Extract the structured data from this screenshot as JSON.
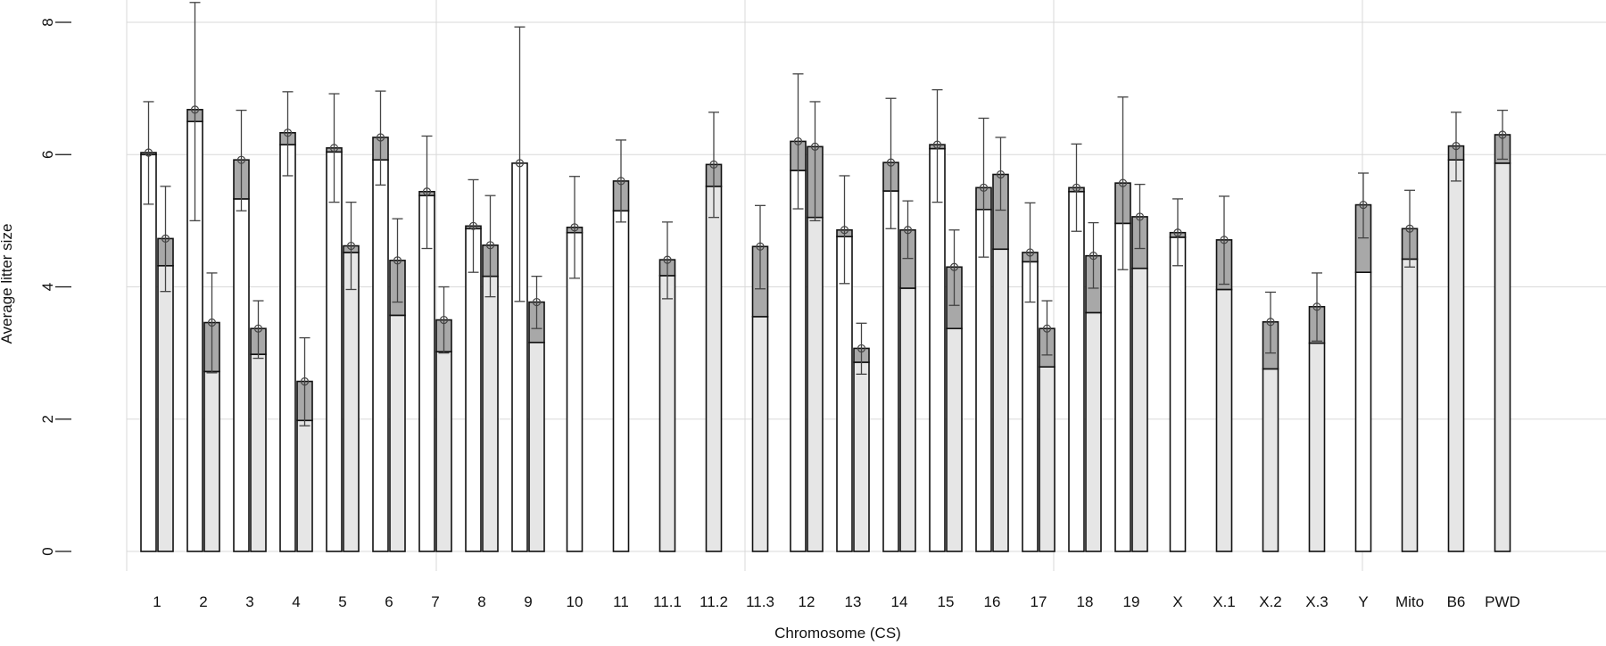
{
  "chart_data": {
    "type": "bar",
    "title": "",
    "xlabel": "Chromosome (CS)",
    "ylabel": "Average litter size",
    "ylim": [
      0,
      8
    ],
    "yticks": [
      0,
      2,
      4,
      6,
      8
    ],
    "grid": true,
    "legend": "none",
    "colors": {
      "white_bar": "#ffffff",
      "light_bar": "#e6e6e6",
      "dark_segment": "#a8a8a8"
    },
    "categories": [
      {
        "label": "1",
        "bars": [
          {
            "color": "white",
            "lower": 6.0,
            "upper": 6.03,
            "err": [
              5.25,
              6.8
            ]
          },
          {
            "color": "light",
            "lower": 4.32,
            "upper": 4.73,
            "err": [
              3.93,
              5.52
            ]
          }
        ]
      },
      {
        "label": "2",
        "bars": [
          {
            "color": "white",
            "lower": 6.5,
            "upper": 6.68,
            "err": [
              5.0,
              8.3
            ]
          },
          {
            "color": "light",
            "lower": 2.72,
            "upper": 3.46,
            "err": [
              2.7,
              4.21
            ]
          }
        ]
      },
      {
        "label": "3",
        "bars": [
          {
            "color": "white",
            "lower": 5.33,
            "upper": 5.92,
            "err": [
              5.15,
              6.67
            ]
          },
          {
            "color": "light",
            "lower": 2.98,
            "upper": 3.37,
            "err": [
              2.92,
              3.79
            ]
          }
        ]
      },
      {
        "label": "4",
        "bars": [
          {
            "color": "white",
            "lower": 6.15,
            "upper": 6.33,
            "err": [
              5.68,
              6.95
            ]
          },
          {
            "color": "light",
            "lower": 1.98,
            "upper": 2.57,
            "err": [
              1.9,
              3.23
            ]
          }
        ]
      },
      {
        "label": "5",
        "bars": [
          {
            "color": "white",
            "lower": 6.04,
            "upper": 6.1,
            "err": [
              5.28,
              6.92
            ]
          },
          {
            "color": "light",
            "lower": 4.52,
            "upper": 4.62,
            "err": [
              3.96,
              5.28
            ]
          }
        ]
      },
      {
        "label": "6",
        "bars": [
          {
            "color": "white",
            "lower": 5.92,
            "upper": 6.26,
            "err": [
              5.54,
              6.96
            ]
          },
          {
            "color": "light",
            "lower": 3.57,
            "upper": 4.4,
            "err": [
              3.77,
              5.03
            ]
          }
        ]
      },
      {
        "label": "7",
        "bars": [
          {
            "color": "white",
            "lower": 5.38,
            "upper": 5.44,
            "err": [
              4.58,
              6.28
            ]
          },
          {
            "color": "light",
            "lower": 3.02,
            "upper": 3.5,
            "err": [
              3.0,
              4.0
            ]
          }
        ]
      },
      {
        "label": "8",
        "bars": [
          {
            "color": "white",
            "lower": 4.88,
            "upper": 4.92,
            "err": [
              4.22,
              5.62
            ]
          },
          {
            "color": "light",
            "lower": 4.16,
            "upper": 4.63,
            "err": [
              3.85,
              5.38
            ]
          }
        ]
      },
      {
        "label": "9",
        "bars": [
          {
            "color": "white",
            "lower": 5.87,
            "upper": 5.87,
            "err": [
              3.78,
              7.93
            ]
          },
          {
            "color": "light",
            "lower": 3.16,
            "upper": 3.77,
            "err": [
              3.37,
              4.16
            ]
          }
        ]
      },
      {
        "label": "10",
        "bars": [
          {
            "color": "white",
            "lower": 4.82,
            "upper": 4.9,
            "err": [
              4.13,
              5.67
            ]
          }
        ]
      },
      {
        "label": "11",
        "bars": [
          {
            "color": "white",
            "lower": 5.15,
            "upper": 5.6,
            "err": [
              4.98,
              6.22
            ]
          }
        ]
      },
      {
        "label": "11.1",
        "bars": [
          {
            "color": "light",
            "lower": 4.17,
            "upper": 4.41,
            "err": [
              3.82,
              4.98
            ]
          }
        ]
      },
      {
        "label": "11.2",
        "bars": [
          {
            "color": "light",
            "lower": 5.52,
            "upper": 5.85,
            "err": [
              5.05,
              6.64
            ]
          }
        ]
      },
      {
        "label": "11.3",
        "bars": [
          {
            "color": "light",
            "lower": 3.55,
            "upper": 4.61,
            "err": [
              3.97,
              5.23
            ]
          }
        ]
      },
      {
        "label": "12",
        "bars": [
          {
            "color": "white",
            "lower": 5.76,
            "upper": 6.2,
            "err": [
              5.18,
              7.22
            ]
          },
          {
            "color": "light",
            "lower": 5.05,
            "upper": 6.12,
            "err": [
              5.0,
              6.8
            ]
          }
        ]
      },
      {
        "label": "13",
        "bars": [
          {
            "color": "white",
            "lower": 4.76,
            "upper": 4.86,
            "err": [
              4.05,
              5.68
            ]
          },
          {
            "color": "light",
            "lower": 2.86,
            "upper": 3.07,
            "err": [
              2.68,
              3.45
            ]
          }
        ]
      },
      {
        "label": "14",
        "bars": [
          {
            "color": "white",
            "lower": 5.45,
            "upper": 5.88,
            "err": [
              4.88,
              6.85
            ]
          },
          {
            "color": "light",
            "lower": 3.98,
            "upper": 4.86,
            "err": [
              4.43,
              5.3
            ]
          }
        ]
      },
      {
        "label": "15",
        "bars": [
          {
            "color": "white",
            "lower": 6.09,
            "upper": 6.15,
            "err": [
              5.28,
              6.98
            ]
          },
          {
            "color": "light",
            "lower": 3.37,
            "upper": 4.3,
            "err": [
              3.72,
              4.86
            ]
          }
        ]
      },
      {
        "label": "16",
        "bars": [
          {
            "color": "white",
            "lower": 5.17,
            "upper": 5.5,
            "err": [
              4.45,
              6.55
            ]
          },
          {
            "color": "light",
            "lower": 4.57,
            "upper": 5.7,
            "err": [
              5.16,
              6.26
            ]
          }
        ]
      },
      {
        "label": "17",
        "bars": [
          {
            "color": "white",
            "lower": 4.38,
            "upper": 4.52,
            "err": [
              3.77,
              5.27
            ]
          },
          {
            "color": "light",
            "lower": 2.79,
            "upper": 3.37,
            "err": [
              2.97,
              3.79
            ]
          }
        ]
      },
      {
        "label": "18",
        "bars": [
          {
            "color": "white",
            "lower": 5.44,
            "upper": 5.5,
            "err": [
              4.84,
              6.16
            ]
          },
          {
            "color": "light",
            "lower": 3.61,
            "upper": 4.47,
            "err": [
              3.98,
              4.97
            ]
          }
        ]
      },
      {
        "label": "19",
        "bars": [
          {
            "color": "white",
            "lower": 4.96,
            "upper": 5.57,
            "err": [
              4.26,
              6.87
            ]
          },
          {
            "color": "light",
            "lower": 4.28,
            "upper": 5.06,
            "err": [
              4.58,
              5.55
            ]
          }
        ]
      },
      {
        "label": "X",
        "bars": [
          {
            "color": "white",
            "lower": 4.75,
            "upper": 4.82,
            "err": [
              4.32,
              5.33
            ]
          }
        ]
      },
      {
        "label": "X.1",
        "bars": [
          {
            "color": "light",
            "lower": 3.96,
            "upper": 4.71,
            "err": [
              4.04,
              5.37
            ]
          }
        ]
      },
      {
        "label": "X.2",
        "bars": [
          {
            "color": "light",
            "lower": 2.76,
            "upper": 3.47,
            "err": [
              3.0,
              3.92
            ]
          }
        ]
      },
      {
        "label": "X.3",
        "bars": [
          {
            "color": "light",
            "lower": 3.15,
            "upper": 3.7,
            "err": [
              3.18,
              4.21
            ]
          }
        ]
      },
      {
        "label": "Y",
        "bars": [
          {
            "color": "white",
            "lower": 4.22,
            "upper": 5.24,
            "err": [
              4.74,
              5.72
            ]
          }
        ]
      },
      {
        "label": "Mito",
        "bars": [
          {
            "color": "light",
            "lower": 4.42,
            "upper": 4.88,
            "err": [
              4.3,
              5.46
            ]
          }
        ]
      },
      {
        "label": "B6",
        "bars": [
          {
            "color": "light",
            "lower": 5.92,
            "upper": 6.13,
            "err": [
              5.6,
              6.64
            ]
          }
        ]
      },
      {
        "label": "PWD",
        "bars": [
          {
            "color": "light",
            "lower": 5.87,
            "upper": 6.3,
            "err": [
              5.93,
              6.67
            ]
          }
        ]
      }
    ]
  }
}
